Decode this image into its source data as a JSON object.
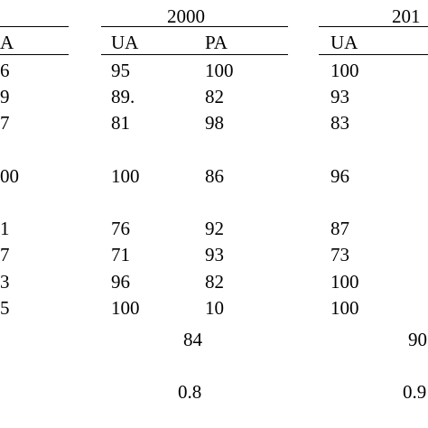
{
  "table": {
    "groups": [
      {
        "label": "2000"
      },
      {
        "label": "201"
      }
    ],
    "columns": [
      {
        "label": "A"
      },
      {
        "label": "UA"
      },
      {
        "label": "PA"
      },
      {
        "label": "UA"
      }
    ],
    "rows": [
      [
        "6",
        "95",
        "100",
        "100"
      ],
      [
        "9",
        "89.",
        "82",
        "93"
      ],
      [
        "7",
        "81",
        "98",
        "83"
      ],
      [
        "00",
        "100",
        "86",
        "96"
      ],
      [
        "1",
        "76",
        "92",
        "87"
      ],
      [
        "7",
        "71",
        "93",
        "73"
      ],
      [
        "3",
        "96",
        "82",
        "100"
      ],
      [
        "5",
        "100",
        "10",
        "100"
      ]
    ],
    "summary": [
      {
        "value_2000": "84",
        "value_201": "90"
      },
      {
        "value_2000": "0.8",
        "value_201": "0.9"
      }
    ]
  }
}
